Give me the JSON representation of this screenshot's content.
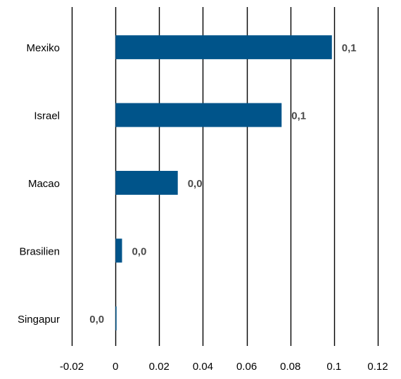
{
  "chart_data": {
    "type": "bar",
    "orientation": "horizontal",
    "title": "",
    "xlabel": "",
    "ylabel": "",
    "categories": [
      "Mexiko",
      "Israel",
      "Macao",
      "Brasilien",
      "Singapur"
    ],
    "values": [
      0.099,
      0.076,
      0.0285,
      0.003,
      0.0004
    ],
    "data_labels": [
      "0,1",
      "0,1",
      "0,0",
      "0,0",
      "0,0"
    ],
    "xlim": [
      -0.02,
      0.12
    ],
    "x_ticks": [
      -0.02,
      0,
      0.02,
      0.04,
      0.06,
      0.08,
      0.1,
      0.12
    ],
    "x_tick_labels": [
      "-0.02",
      "0",
      "0.02",
      "0.04",
      "0.06",
      "0.08",
      "0.1",
      "0.12"
    ],
    "grid": "vertical",
    "legend": "none",
    "colors": {
      "bar": "#00548a",
      "grid": "#000000",
      "label_text": "#4a4a4a",
      "category_text": "#000000",
      "tick_text": "#000000"
    }
  }
}
